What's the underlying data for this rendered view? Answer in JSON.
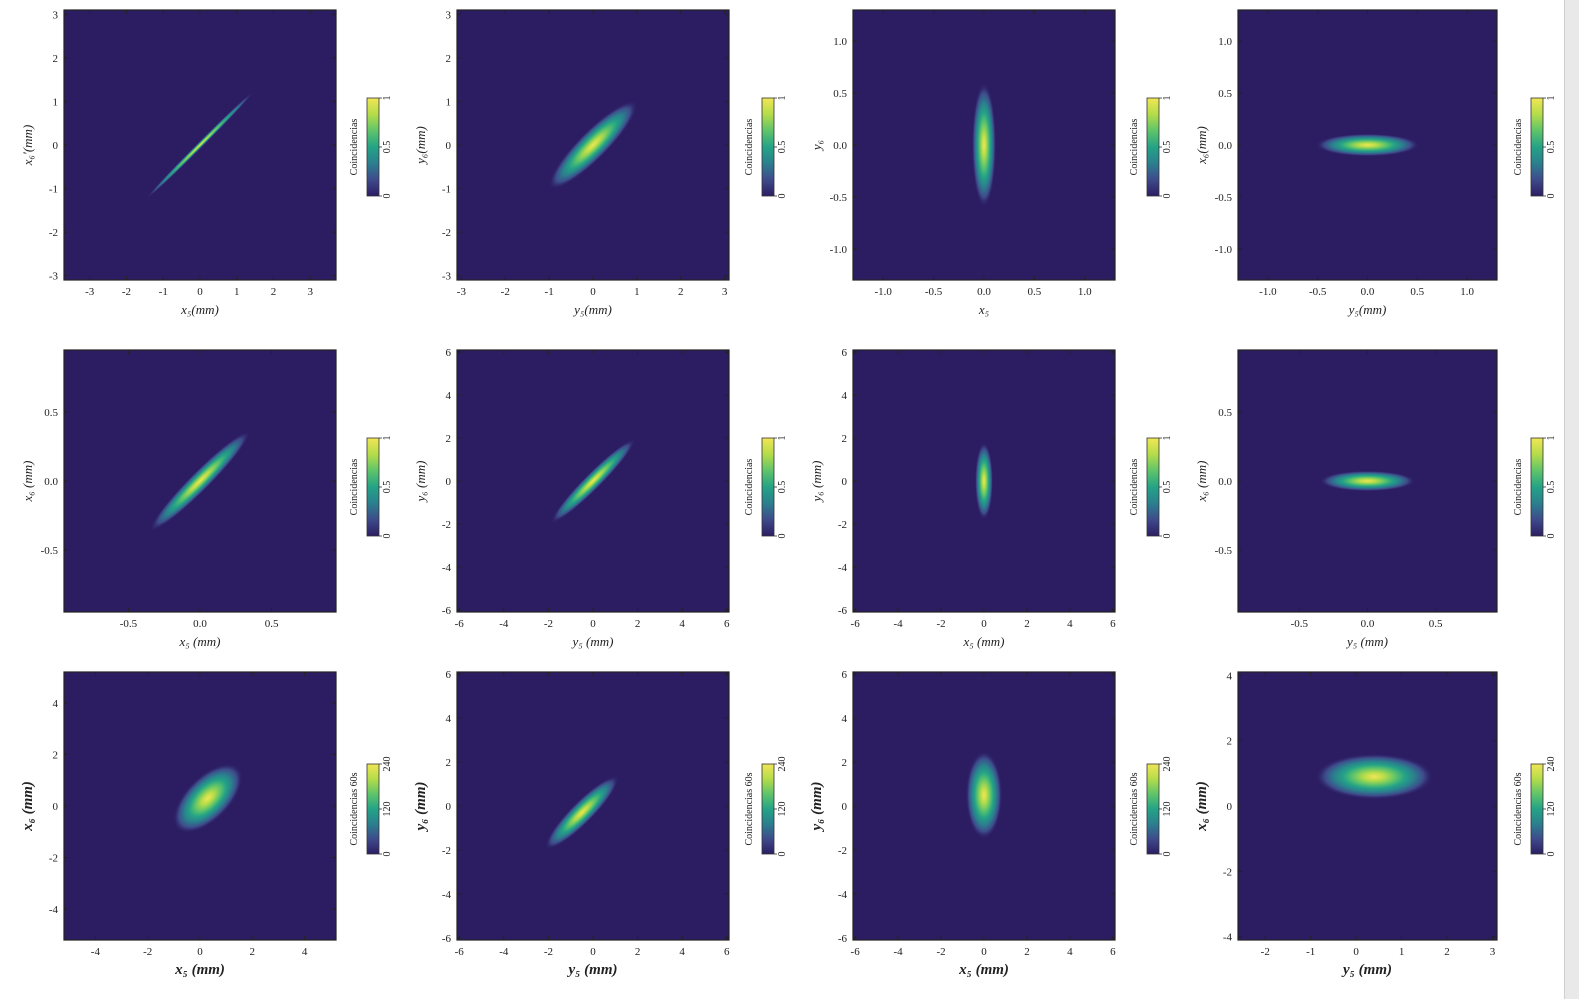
{
  "colors": {
    "background": "#2c1d63",
    "colormap": [
      "#2c1d63",
      "#3e4a8b",
      "#2b7f8e",
      "#24a386",
      "#5fc46a",
      "#b5dc4a",
      "#f1e655"
    ]
  },
  "chart_data": [
    {
      "type": "heatmap",
      "shape": "ellipse",
      "xlabel": "x₅(mm)",
      "ylabel": "x₆′(mm)",
      "xlim": [
        -3.7,
        3.7
      ],
      "ylim": [
        -3.1,
        3.1
      ],
      "xticks": [
        -3,
        -2,
        -1,
        0,
        1,
        2,
        3
      ],
      "yticks": [
        -3,
        -2,
        -1,
        0,
        1,
        2,
        3
      ],
      "peak": [
        0,
        0
      ],
      "sigma_major": 1.9,
      "sigma_minor": 0.07,
      "angle_deg": 45,
      "colorbar_label": "Coincidencias",
      "colorbar_ticks": [
        "0",
        "0.5",
        "1"
      ]
    },
    {
      "type": "heatmap",
      "shape": "ellipse",
      "xlabel": "y₅(mm)",
      "ylabel": "y₆(mm)",
      "xlim": [
        -3.1,
        3.1
      ],
      "ylim": [
        -3.1,
        3.1
      ],
      "xticks": [
        -3,
        -2,
        -1,
        0,
        1,
        2,
        3
      ],
      "yticks": [
        -3,
        -2,
        -1,
        0,
        1,
        2,
        3
      ],
      "peak": [
        0,
        0
      ],
      "sigma_major": 1.4,
      "sigma_minor": 0.33,
      "angle_deg": 45,
      "colorbar_label": "Coincidencias",
      "colorbar_ticks": [
        "0",
        "0.5",
        "1"
      ]
    },
    {
      "type": "heatmap",
      "shape": "ellipse",
      "xlabel": "x₅",
      "ylabel": "y₆",
      "xlim": [
        -1.3,
        1.3
      ],
      "ylim": [
        -1.3,
        1.3
      ],
      "xticks": [
        "-1.0",
        "-0.5",
        "0.0",
        "0.5",
        "1.0"
      ],
      "yticks": [
        "-1.0",
        "-0.5",
        "0.0",
        "0.5",
        "1.0"
      ],
      "peak": [
        0,
        0
      ],
      "sigma_major": 0.6,
      "sigma_minor": 0.12,
      "angle_deg": 90,
      "colorbar_label": "Coincidencias",
      "colorbar_ticks": [
        "0",
        "0.5",
        "1"
      ]
    },
    {
      "type": "heatmap",
      "shape": "ellipse",
      "xlabel": "y₅(mm)",
      "ylabel": "x₆(mm)",
      "xlim": [
        -1.3,
        1.3
      ],
      "ylim": [
        -1.3,
        1.3
      ],
      "xticks": [
        "-1.0",
        "-0.5",
        "0.0",
        "0.5",
        "1.0"
      ],
      "yticks": [
        "-1.0",
        "-0.5",
        "0.0",
        "0.5",
        "1.0"
      ],
      "peak": [
        0,
        0
      ],
      "sigma_major": 0.52,
      "sigma_minor": 0.11,
      "angle_deg": 0,
      "colorbar_label": "Coincidencias",
      "colorbar_ticks": [
        "0",
        "0.5",
        "1"
      ]
    },
    {
      "type": "heatmap",
      "shape": "ellipse",
      "xlabel": "x₅ (mm)",
      "ylabel": "x₆ (mm)",
      "xlim": [
        -0.95,
        0.95
      ],
      "ylim": [
        -0.95,
        0.95
      ],
      "xticks": [
        "-0.5",
        "0.0",
        "0.5"
      ],
      "yticks": [
        "-0.5",
        "0.0",
        "0.5"
      ],
      "peak": [
        0,
        0
      ],
      "sigma_major": 0.5,
      "sigma_minor": 0.07,
      "angle_deg": 45,
      "colorbar_label": "Coincidencias",
      "colorbar_ticks": [
        "0",
        "0.5",
        "1"
      ]
    },
    {
      "type": "heatmap",
      "shape": "ellipse",
      "xlabel": "y₅ (mm)",
      "ylabel": "y₆ (mm)",
      "xlim": [
        -6.1,
        6.1
      ],
      "ylim": [
        -6.1,
        6.1
      ],
      "xticks": [
        -6,
        -4,
        -2,
        0,
        2,
        4,
        6
      ],
      "yticks": [
        -6,
        -4,
        -2,
        0,
        2,
        4,
        6
      ],
      "peak": [
        0,
        0
      ],
      "sigma_major": 2.7,
      "sigma_minor": 0.38,
      "angle_deg": 45,
      "colorbar_label": "Coincidencias",
      "colorbar_ticks": [
        "0",
        "0.5",
        "1"
      ]
    },
    {
      "type": "heatmap",
      "shape": "ellipse",
      "xlabel": "x₅ (mm)",
      "ylabel": "y₆ (mm)",
      "xlim": [
        -6.1,
        6.1
      ],
      "ylim": [
        -6.1,
        6.1
      ],
      "xticks": [
        -6,
        -4,
        -2,
        0,
        2,
        4,
        6
      ],
      "yticks": [
        -6,
        -4,
        -2,
        0,
        2,
        4,
        6
      ],
      "peak": [
        0,
        0
      ],
      "sigma_major": 1.8,
      "sigma_minor": 0.42,
      "angle_deg": 90,
      "colorbar_label": "Coincidencias",
      "colorbar_ticks": [
        "0",
        "0.5",
        "1"
      ]
    },
    {
      "type": "heatmap",
      "shape": "ellipse",
      "xlabel": "y₅ (mm)",
      "ylabel": "x₆ (mm)",
      "xlim": [
        -0.95,
        0.95
      ],
      "ylim": [
        -0.95,
        0.95
      ],
      "xticks": [
        "-0.5",
        "0.0",
        "0.5"
      ],
      "yticks": [
        "-0.5",
        "0.0",
        "0.5"
      ],
      "peak": [
        0,
        0
      ],
      "sigma_major": 0.35,
      "sigma_minor": 0.075,
      "angle_deg": 0,
      "colorbar_label": "Coincidencias",
      "colorbar_ticks": [
        "0",
        "0.5",
        "1"
      ]
    },
    {
      "type": "heatmap",
      "shape": "ellipse",
      "xlabel": "x₅ (mm)",
      "ylabel": "x₆ (mm)",
      "xlim": [
        -5.2,
        5.2
      ],
      "ylim": [
        -5.2,
        5.2
      ],
      "xticks": [
        -4,
        -2,
        0,
        2,
        4
      ],
      "yticks": [
        -4,
        -2,
        0,
        2,
        4
      ],
      "peak": [
        0.3,
        0.3
      ],
      "sigma_major": 1.7,
      "sigma_minor": 0.85,
      "angle_deg": 45,
      "colorbar_label": "Coincidencias 60s",
      "colorbar_ticks": [
        "0",
        "120",
        "240"
      ]
    },
    {
      "type": "heatmap",
      "shape": "ellipse",
      "xlabel": "y₅ (mm)",
      "ylabel": "y₆ (mm)",
      "xlim": [
        -6.1,
        6.1
      ],
      "ylim": [
        -6.1,
        6.1
      ],
      "xticks": [
        -6,
        -4,
        -2,
        0,
        2,
        4,
        6
      ],
      "yticks": [
        -6,
        -4,
        -2,
        0,
        2,
        4,
        6
      ],
      "peak": [
        -0.5,
        -0.3
      ],
      "sigma_major": 2.3,
      "sigma_minor": 0.5,
      "angle_deg": 45,
      "colorbar_label": "Coincidencias 60s",
      "colorbar_ticks": [
        "0",
        "120",
        "240"
      ]
    },
    {
      "type": "heatmap",
      "shape": "ellipse",
      "xlabel": "x₅ (mm)",
      "ylabel": "y₆ (mm)",
      "xlim": [
        -6.1,
        6.1
      ],
      "ylim": [
        -6.1,
        6.1
      ],
      "xticks": [
        -6,
        -4,
        -2,
        0,
        2,
        4,
        6
      ],
      "yticks": [
        -6,
        -4,
        -2,
        0,
        2,
        4,
        6
      ],
      "peak": [
        0,
        0.5
      ],
      "sigma_major": 2.0,
      "sigma_minor": 0.85,
      "angle_deg": 90,
      "colorbar_label": "Coincidencias 60s",
      "colorbar_ticks": [
        "0",
        "120",
        "240"
      ]
    },
    {
      "type": "heatmap",
      "shape": "ellipse",
      "xlabel": "y₅ (mm)",
      "ylabel": "x₆ (mm)",
      "xlim": [
        -2.6,
        3.1
      ],
      "ylim": [
        -4.1,
        4.1
      ],
      "xticks": [
        -2,
        -1,
        0,
        1,
        2,
        3
      ],
      "yticks": [
        -4,
        -2,
        0,
        2,
        4
      ],
      "peak": [
        0.4,
        0.9
      ],
      "sigma_major": 1.3,
      "sigma_minor": 0.7,
      "angle_deg": 0,
      "colorbar_label": "Coincidencias 60s",
      "colorbar_ticks": [
        "0",
        "120",
        "240"
      ]
    }
  ]
}
